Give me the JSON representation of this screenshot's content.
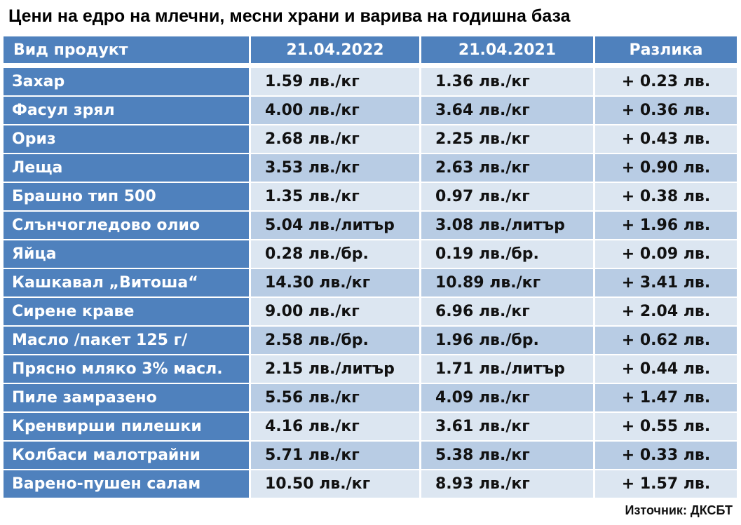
{
  "title": "Цени на едро на млечни, месни храни и варива на годишна база",
  "columns": [
    "Вид продукт",
    "21.04.2022",
    "21.04.2021",
    "Разлика"
  ],
  "rows": [
    [
      "Захар",
      "1.59 лв./кг",
      "1.36 лв./кг",
      "+ 0.23 лв."
    ],
    [
      "Фасул зрял",
      "4.00 лв./кг",
      "3.64 лв./кг",
      "+ 0.36 лв."
    ],
    [
      "Ориз",
      "2.68 лв./кг",
      "2.25 лв./кг",
      "+ 0.43 лв."
    ],
    [
      "Леща",
      "3.53 лв./кг",
      "2.63 лв./кг",
      "+ 0.90 лв."
    ],
    [
      "Брашно тип 500",
      "1.35 лв./кг",
      "0.97 лв./кг",
      "+ 0.38 лв."
    ],
    [
      "Слънчогледово олио",
      "5.04 лв./литър",
      "3.08 лв./литър",
      "+ 1.96 лв."
    ],
    [
      "Яйца",
      "0.28 лв./бр.",
      "0.19 лв./бр.",
      "+ 0.09 лв."
    ],
    [
      "Кашкавал „Витоша“",
      "14.30 лв./кг",
      "10.89 лв./кг",
      "+ 3.41 лв."
    ],
    [
      "Сирене краве",
      "9.00 лв./кг",
      "6.96 лв./кг",
      "+ 2.04 лв."
    ],
    [
      "Масло /пакет 125 г/",
      "2.58 лв./бр.",
      "1.96 лв./бр.",
      "+ 0.62 лв."
    ],
    [
      "Прясно мляко 3% масл.",
      "2.15 лв./литър",
      "1.71 лв./литър",
      "+ 0.44 лв."
    ],
    [
      "Пиле замразено",
      "5.56 лв./кг",
      "4.09 лв./кг",
      "+ 1.47 лв."
    ],
    [
      "Кренвирши пилешки",
      "4.16 лв./кг",
      "3.61 лв./кг",
      "+ 0.55 лв."
    ],
    [
      "Колбаси малотрайни",
      "5.71 лв./кг",
      "5.38 лв./кг",
      "+ 0.33 лв."
    ],
    [
      "Варено-пушен салам",
      "10.50 лв./кг",
      "8.93 лв./кг",
      "+ 1.57 лв."
    ]
  ],
  "source": "Източник: ДКСБТ",
  "colors": {
    "header": "#4f81bd",
    "row_light": "#dce6f1",
    "row_dark": "#b8cce4"
  }
}
